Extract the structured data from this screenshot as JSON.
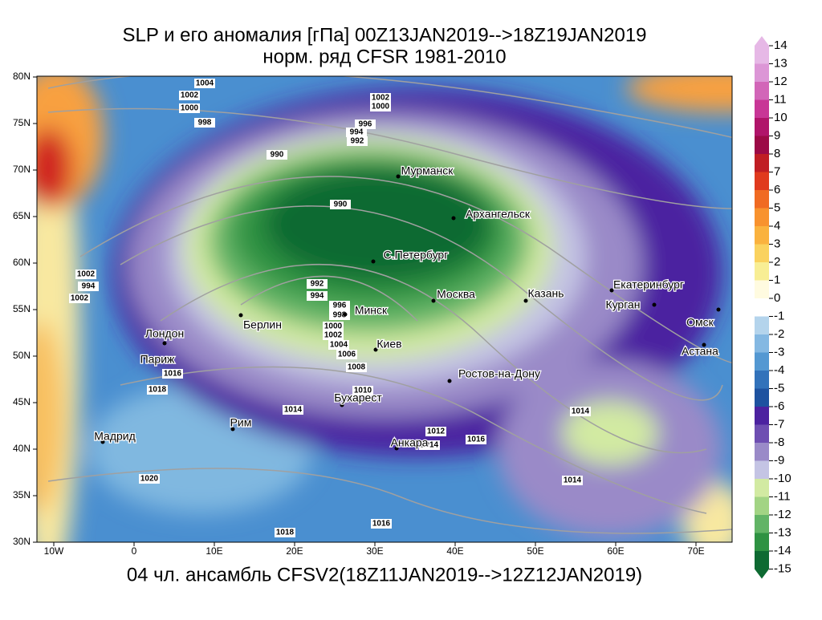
{
  "title": {
    "line1": "SLP и его аномалия [гПа] 00Z13JAN2019-->18Z19JAN2019",
    "line2": "норм. ряд CFSR 1981-2010"
  },
  "footer": "04 чл. ансамбль CFSV2(18Z11JAN2019-->12Z12JAN2019)",
  "lon_labels": [
    "10W",
    "0",
    "10E",
    "20E",
    "30E",
    "40E",
    "50E",
    "60E",
    "70E"
  ],
  "lat_labels": [
    "80N",
    "75N",
    "70N",
    "65N",
    "60N",
    "55N",
    "50N",
    "45N",
    "40N",
    "35N",
    "30N"
  ],
  "cities": [
    "Мурманск",
    "Архангельск",
    "С.Петербург",
    "Москва",
    "Казань",
    "Екатеринбург",
    "Курган",
    "Омск",
    "Астана",
    "Минск",
    "Берлин",
    "Лондон",
    "Париж",
    "Киев",
    "Ростов-на-Дону",
    "Бухарест",
    "Рим",
    "Мадрид",
    "Анкара"
  ],
  "isobar_labels": [
    1004,
    1002,
    1000,
    998,
    1002,
    1000,
    996,
    994,
    992,
    990,
    990,
    1002,
    994,
    1002,
    992,
    994,
    996,
    998,
    1000,
    1002,
    1004,
    1006,
    1008,
    1010,
    1016,
    1018,
    1014,
    1012,
    1014,
    1016,
    1014,
    1014,
    1020,
    1018,
    1016
  ],
  "colorbar": {
    "levels": [
      14,
      13,
      12,
      11,
      10,
      9,
      8,
      7,
      6,
      5,
      4,
      3,
      2,
      1,
      0,
      -1,
      -2,
      -3,
      -4,
      -5,
      -6,
      -7,
      -8,
      -9,
      -10,
      -11,
      -12,
      -13,
      -14,
      -15
    ],
    "colors": [
      "#e6b8e6",
      "#dc96d6",
      "#d266b8",
      "#c83696",
      "#b0146a",
      "#9c0a46",
      "#c01e24",
      "#e03a1e",
      "#f06a22",
      "#f8922e",
      "#fab23e",
      "#fad25e",
      "#f8ee94",
      "#fffbe0",
      "#ffffff",
      "#b4d4ec",
      "#84b8e2",
      "#5498d2",
      "#3272ba",
      "#1e52a0",
      "#4c22a0",
      "#6e4eb2",
      "#9a8ac8",
      "#c4c4e4",
      "#d2eaa2",
      "#a2d484",
      "#62b466",
      "#2e9242",
      "#0e6a32"
    ]
  }
}
